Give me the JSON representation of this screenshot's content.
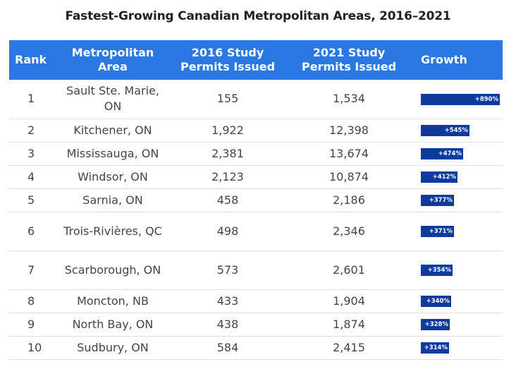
{
  "chart_data": {
    "type": "table",
    "title": "Fastest-Growing Canadian Metropolitan Areas, 2016–2021",
    "columns": [
      "Rank",
      "Metropolitan Area",
      "2016 Study Permits Issued",
      "2021 Study Permits Issued",
      "Growth"
    ],
    "rows": [
      {
        "rank": "1",
        "area": "Sault Ste. Marie, ON",
        "p2016": "155",
        "p2021": "1,534",
        "growth": 890,
        "growth_label": "+890%"
      },
      {
        "rank": "2",
        "area": "Kitchener, ON",
        "p2016": "1,922",
        "p2021": "12,398",
        "growth": 545,
        "growth_label": "+545%"
      },
      {
        "rank": "3",
        "area": "Mississauga, ON",
        "p2016": "2,381",
        "p2021": "13,674",
        "growth": 474,
        "growth_label": "+474%"
      },
      {
        "rank": "4",
        "area": "Windsor, ON",
        "p2016": "2,123",
        "p2021": "10,874",
        "growth": 412,
        "growth_label": "+412%"
      },
      {
        "rank": "5",
        "area": "Sarnia, ON",
        "p2016": "458",
        "p2021": "2,186",
        "growth": 377,
        "growth_label": "+377%"
      },
      {
        "rank": "6",
        "area": "Trois-Rivières, QC",
        "p2016": "498",
        "p2021": "2,346",
        "growth": 371,
        "growth_label": "+371%"
      },
      {
        "rank": "7",
        "area": "Scarborough, ON",
        "p2016": "573",
        "p2021": "2,601",
        "growth": 354,
        "growth_label": "+354%"
      },
      {
        "rank": "8",
        "area": "Moncton, NB",
        "p2016": "433",
        "p2021": "1,904",
        "growth": 340,
        "growth_label": "+340%"
      },
      {
        "rank": "9",
        "area": "North Bay, ON",
        "p2016": "438",
        "p2021": "1,874",
        "growth": 328,
        "growth_label": "+328%"
      },
      {
        "rank": "10",
        "area": "Sudbury, ON",
        "p2016": "584",
        "p2021": "2,415",
        "growth": 314,
        "growth_label": "+314%"
      }
    ]
  },
  "colors": {
    "header_bg": "#2b78e4",
    "bar_fill": "#0e3a9e",
    "row_divider": "#dddddd"
  }
}
